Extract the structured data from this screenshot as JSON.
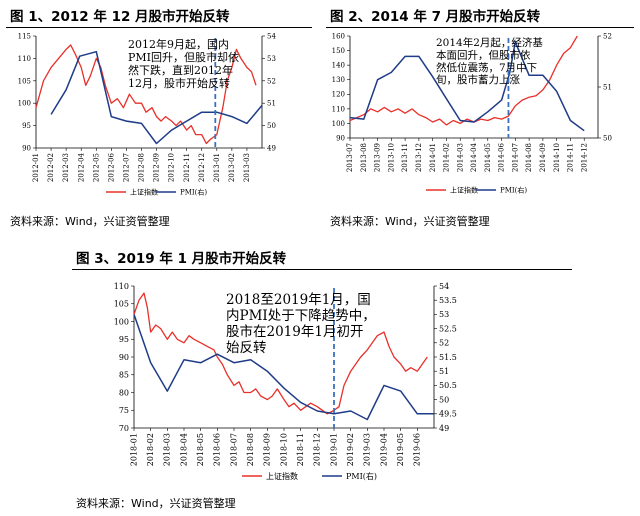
{
  "figures": [
    {
      "id": "fig1",
      "title": "图 1、2012 年 12 月股市开始反转",
      "source": "资料来源：Wind，兴证资管整理"
    },
    {
      "id": "fig2",
      "title": "图 2、2014 年 7 月股市开始反转",
      "source": "资料来源：Wind，兴证资管整理"
    },
    {
      "id": "fig3",
      "title": "图 3、2019 年 1 月股市开始反转",
      "source": "资料来源：Wind，兴证资管整理"
    }
  ],
  "colors": {
    "index_line": "#e8302a",
    "pmi_line": "#1f3c88",
    "dashed_marker": "#3a70c0",
    "axis": "#000000"
  },
  "chart_data": [
    {
      "id": "fig1",
      "type": "line",
      "title": "",
      "x_ticks": [
        "2012-01",
        "2012-02",
        "2012-03",
        "2012-04",
        "2012-05",
        "2012-06",
        "2012-07",
        "2012-08",
        "2012-09",
        "2012-10",
        "2012-11",
        "2012-12",
        "2013-01",
        "2013-02",
        "2013-03"
      ],
      "y_left": {
        "ylim": [
          90,
          115
        ],
        "ticks": [
          90,
          95,
          100,
          105,
          110,
          115
        ]
      },
      "y_right": {
        "ylim": [
          49,
          54
        ],
        "ticks": [
          49,
          50,
          51,
          52,
          53,
          54
        ]
      },
      "legend": [
        "上证指数",
        "PMI(右)"
      ],
      "legend_position": "bottom",
      "annotation": [
        "2012年9月起，国内",
        "PMI回升，但股市却依",
        "然下跌，直到2012年",
        "12月，股市开始反转"
      ],
      "dashed_x": 11.9,
      "series": [
        {
          "name": "上证指数",
          "axis": "left",
          "points": [
            [
              0,
              99
            ],
            [
              0.5,
              105
            ],
            [
              1,
              108
            ],
            [
              1.5,
              110
            ],
            [
              2,
              112
            ],
            [
              2.3,
              113
            ],
            [
              2.6,
              111
            ],
            [
              3,
              108
            ],
            [
              3.3,
              104
            ],
            [
              3.6,
              106
            ],
            [
              4,
              110
            ],
            [
              4.3,
              108
            ],
            [
              4.6,
              104
            ],
            [
              5,
              100
            ],
            [
              5.4,
              101
            ],
            [
              5.8,
              99
            ],
            [
              6.2,
              102
            ],
            [
              6.6,
              100
            ],
            [
              7,
              100
            ],
            [
              7.3,
              98
            ],
            [
              7.7,
              99
            ],
            [
              8,
              97
            ],
            [
              8.3,
              96
            ],
            [
              8.6,
              97
            ],
            [
              9,
              96
            ],
            [
              9.3,
              95
            ],
            [
              9.6,
              96
            ],
            [
              10,
              94
            ],
            [
              10.3,
              95
            ],
            [
              10.6,
              93
            ],
            [
              11,
              93
            ],
            [
              11.3,
              91
            ],
            [
              11.6,
              92
            ],
            [
              12,
              93
            ],
            [
              12.2,
              96
            ],
            [
              12.4,
              99
            ],
            [
              12.7,
              105
            ],
            [
              13,
              108
            ],
            [
              13.3,
              112
            ],
            [
              13.6,
              110
            ],
            [
              14,
              108
            ],
            [
              14.3,
              107
            ],
            [
              14.6,
              104
            ]
          ]
        },
        {
          "name": "PMI(右)",
          "axis": "right",
          "points": [
            [
              1,
              50.5
            ],
            [
              2,
              51.6
            ],
            [
              2.9,
              53.1
            ],
            [
              4,
              53.3
            ],
            [
              5,
              50.4
            ],
            [
              6,
              50.2
            ],
            [
              7,
              50.1
            ],
            [
              8,
              49.2
            ],
            [
              9,
              49.8
            ],
            [
              10,
              50.2
            ],
            [
              11,
              50.6
            ],
            [
              12,
              50.6
            ],
            [
              13,
              50.4
            ],
            [
              14,
              50.1
            ],
            [
              15,
              50.9
            ]
          ]
        }
      ]
    },
    {
      "id": "fig2",
      "type": "line",
      "title": "",
      "x_ticks": [
        "2013-07",
        "2013-08",
        "2013-09",
        "2013-10",
        "2013-11",
        "2013-12",
        "2014-01",
        "2014-02",
        "2014-03",
        "2014-04",
        "2014-05",
        "2014-06",
        "2014-07",
        "2014-08",
        "2014-09",
        "2014-10",
        "2014-11",
        "2014-12"
      ],
      "y_left": {
        "ylim": [
          90,
          160
        ],
        "ticks": [
          90,
          100,
          110,
          120,
          130,
          140,
          150,
          160
        ]
      },
      "y_right": {
        "ylim": [
          50,
          52
        ],
        "ticks": [
          50,
          51,
          52
        ]
      },
      "legend": [
        "上证指数",
        "PMI(右)"
      ],
      "legend_position": "bottom",
      "annotation": [
        "2014年2月起，经济基",
        "本面回升，但股市依",
        "然低位震荡，7月中下",
        "旬，股市蓄力上涨"
      ],
      "dashed_x": 11.5,
      "series": [
        {
          "name": "上证指数",
          "axis": "left",
          "points": [
            [
              0,
              102
            ],
            [
              0.5,
              104
            ],
            [
              1,
              106
            ],
            [
              1.5,
              110
            ],
            [
              2,
              108
            ],
            [
              2.5,
              111
            ],
            [
              3,
              108
            ],
            [
              3.5,
              110
            ],
            [
              4,
              107
            ],
            [
              4.5,
              110
            ],
            [
              5,
              106
            ],
            [
              5.5,
              104
            ],
            [
              6,
              101
            ],
            [
              6.5,
              103
            ],
            [
              7,
              99
            ],
            [
              7.5,
              102
            ],
            [
              8,
              100
            ],
            [
              8.5,
              103
            ],
            [
              9,
              101
            ],
            [
              9.5,
              103
            ],
            [
              10,
              102
            ],
            [
              10.5,
              104
            ],
            [
              11,
              103
            ],
            [
              11.5,
              105
            ],
            [
              12,
              112
            ],
            [
              12.5,
              116
            ],
            [
              13,
              118
            ],
            [
              13.5,
              119
            ],
            [
              14,
              123
            ],
            [
              14.5,
              130
            ],
            [
              15,
              140
            ],
            [
              15.5,
              148
            ],
            [
              16,
              152
            ],
            [
              16.5,
              160
            ]
          ]
        },
        {
          "name": "PMI(右)",
          "axis": "left",
          "points": [
            [
              0,
              104
            ],
            [
              1,
              103
            ],
            [
              2,
              130
            ],
            [
              3,
              135
            ],
            [
              4,
              146
            ],
            [
              5,
              146
            ],
            [
              6,
              132
            ],
            [
              7,
              117
            ],
            [
              8,
              102
            ],
            [
              9,
              101
            ],
            [
              10,
              108
            ],
            [
              11,
              116
            ],
            [
              11.6,
              135
            ],
            [
              12,
              156
            ],
            [
              13,
              133
            ],
            [
              14,
              133
            ],
            [
              15,
              122
            ],
            [
              16,
              102
            ],
            [
              17,
              95
            ]
          ]
        }
      ]
    },
    {
      "id": "fig3",
      "type": "line",
      "title": "",
      "x_ticks": [
        "2018-01",
        "2018-02",
        "2018-03",
        "2018-04",
        "2018-05",
        "2018-06",
        "2018-07",
        "2018-08",
        "2018-09",
        "2018-10",
        "2018-11",
        "2018-12",
        "2019-01",
        "2019-02",
        "2019-03",
        "2019-04",
        "2019-05",
        "2019-06"
      ],
      "y_left": {
        "ylim": [
          70,
          110
        ],
        "ticks": [
          70,
          75,
          80,
          85,
          90,
          95,
          100,
          105,
          110
        ]
      },
      "y_right": {
        "ylim": [
          49,
          54
        ],
        "ticks": [
          49,
          49.5,
          50,
          50.5,
          51,
          51.5,
          52,
          52.5,
          53,
          53.5,
          54
        ]
      },
      "legend": [
        "上证指数",
        "PMI(右)"
      ],
      "legend_position": "bottom",
      "annotation": [
        "2018至2019年1月，国",
        "内PMI处于下降趋势中，",
        "股市在2019年1月初开",
        "始反转"
      ],
      "dashed_x": 12,
      "series": [
        {
          "name": "上证指数",
          "axis": "left",
          "points": [
            [
              0,
              102
            ],
            [
              0.3,
              106
            ],
            [
              0.6,
              108
            ],
            [
              0.8,
              104
            ],
            [
              1,
              97
            ],
            [
              1.3,
              99
            ],
            [
              1.6,
              98
            ],
            [
              2,
              95
            ],
            [
              2.3,
              97
            ],
            [
              2.6,
              95
            ],
            [
              3,
              94
            ],
            [
              3.3,
              96
            ],
            [
              3.6,
              95
            ],
            [
              4,
              94
            ],
            [
              4.4,
              93
            ],
            [
              4.8,
              92
            ],
            [
              5,
              90
            ],
            [
              5.3,
              88
            ],
            [
              5.6,
              85
            ],
            [
              6,
              82
            ],
            [
              6.3,
              83
            ],
            [
              6.6,
              80
            ],
            [
              7,
              80
            ],
            [
              7.3,
              81
            ],
            [
              7.6,
              79
            ],
            [
              8,
              78
            ],
            [
              8.3,
              79
            ],
            [
              8.6,
              81
            ],
            [
              9,
              78
            ],
            [
              9.3,
              76
            ],
            [
              9.6,
              77
            ],
            [
              10,
              75
            ],
            [
              10.3,
              76
            ],
            [
              10.6,
              77
            ],
            [
              11,
              76
            ],
            [
              11.3,
              75
            ],
            [
              11.6,
              74
            ],
            [
              12,
              75
            ],
            [
              12.3,
              76
            ],
            [
              12.6,
              82
            ],
            [
              13,
              86
            ],
            [
              13.3,
              88
            ],
            [
              13.6,
              90
            ],
            [
              14,
              92
            ],
            [
              14.3,
              94
            ],
            [
              14.6,
              96
            ],
            [
              15,
              97
            ],
            [
              15.3,
              93
            ],
            [
              15.6,
              90
            ],
            [
              16,
              88
            ],
            [
              16.3,
              86
            ],
            [
              16.6,
              87
            ],
            [
              17,
              86
            ],
            [
              17.3,
              88
            ],
            [
              17.6,
              90
            ]
          ]
        },
        {
          "name": "PMI(右)",
          "axis": "right",
          "points": [
            [
              0,
              53
            ],
            [
              1,
              51.3
            ],
            [
              2,
              50.3
            ],
            [
              3,
              51.4
            ],
            [
              4,
              51.3
            ],
            [
              5,
              51.6
            ],
            [
              6,
              51.3
            ],
            [
              7,
              51.4
            ],
            [
              8,
              51
            ],
            [
              9,
              50.4
            ],
            [
              10,
              49.9
            ],
            [
              11,
              49.6
            ],
            [
              12,
              49.5
            ],
            [
              13,
              49.6
            ],
            [
              14,
              49.3
            ],
            [
              15,
              50.5
            ],
            [
              16,
              50.3
            ],
            [
              17,
              49.5
            ],
            [
              18,
              49.5
            ]
          ]
        }
      ]
    }
  ]
}
